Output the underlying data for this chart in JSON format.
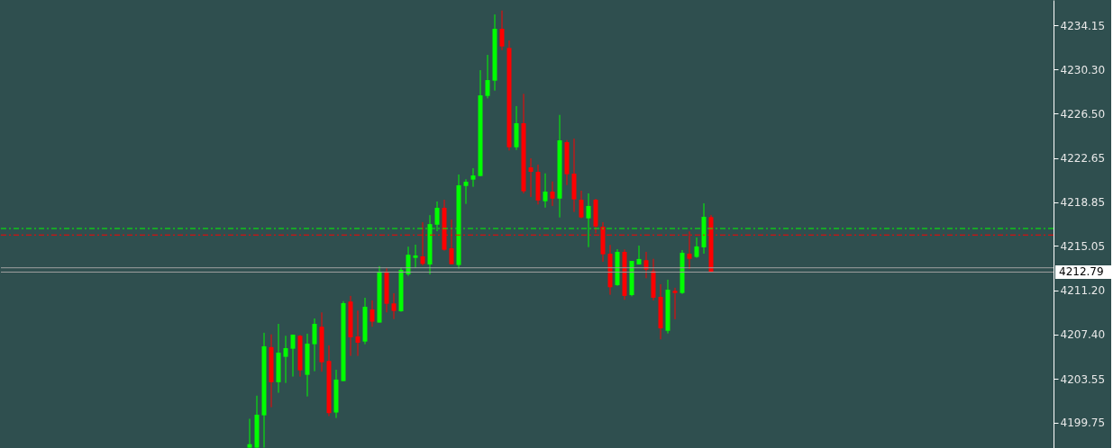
{
  "chart_data": {
    "type": "candlestick",
    "categories": [
      null,
      null,
      null,
      null,
      null,
      null,
      null,
      null,
      null,
      null,
      null,
      null,
      null,
      null,
      null,
      null,
      null,
      null,
      null,
      null,
      null,
      null,
      null,
      null,
      null,
      null,
      null,
      null,
      null,
      null,
      null,
      null,
      null,
      null,
      null,
      null,
      null,
      null,
      null,
      null,
      null,
      null,
      null,
      null,
      null,
      null,
      null,
      null,
      null,
      null,
      null,
      null,
      null,
      null,
      null,
      null,
      null,
      null,
      null,
      null,
      null,
      null,
      null,
      null,
      null,
      null,
      null,
      null,
      null,
      null,
      null,
      null,
      null,
      null,
      null,
      null,
      null,
      null,
      null,
      null,
      null,
      null,
      null,
      null,
      null,
      null,
      null,
      null,
      null,
      null,
      null,
      null,
      null,
      null,
      null,
      null,
      null,
      null,
      null,
      null,
      null,
      null,
      null,
      null,
      null,
      null,
      null,
      null,
      null,
      null,
      null,
      null,
      null,
      null,
      null,
      null,
      null,
      null,
      null,
      null,
      null,
      null,
      null,
      null,
      null,
      null,
      null,
      null,
      null,
      null,
      null,
      null,
      null,
      null,
      null,
      null,
      null,
      null,
      null,
      null,
      null,
      null,
      null,
      null,
      null,
      null
    ],
    "ohlc": [
      null,
      null,
      null,
      null,
      null,
      null,
      null,
      null,
      null,
      null,
      null,
      null,
      null,
      null,
      null,
      null,
      null,
      null,
      null,
      null,
      null,
      null,
      null,
      null,
      null,
      null,
      null,
      null,
      null,
      null,
      null,
      null,
      null,
      null,
      [
        4197.6,
        4200.1,
        4197.6,
        4197.9
      ],
      [
        4197.6,
        4202.1,
        4197.6,
        4200.45
      ],
      [
        4200.4,
        4207.54,
        4197.6,
        4206.37
      ],
      [
        4206.3,
        4207.4,
        4201.1,
        4203.26
      ],
      [
        4203.26,
        4208.31,
        4202.35,
        4205.82
      ],
      [
        4205.46,
        4207.28,
        4203.2,
        4206.21
      ],
      [
        4206.16,
        4207.38,
        4203.75,
        4207.38
      ],
      [
        4207.28,
        4207.35,
        4203.75,
        4204.29
      ],
      [
        4203.9,
        4207.46,
        4202.03,
        4206.6
      ],
      [
        4206.55,
        4208.78,
        4204.21,
        4208.31
      ],
      [
        4208.06,
        4209.3,
        4204.17,
        4204.99
      ],
      [
        4205.1,
        4206.45,
        4200.33,
        4200.59
      ],
      [
        4200.64,
        4204.34,
        4200.17,
        4203.49
      ],
      [
        4203.36,
        4210.27,
        4203.36,
        4210.1
      ],
      [
        4210.24,
        4210.73,
        4205.54,
        4207.15
      ],
      [
        4207.22,
        4209.46,
        4205.54,
        4206.68
      ],
      [
        4206.78,
        4210.57,
        4206.55,
        4209.79
      ],
      [
        4209.56,
        4210.34,
        4208.06,
        4208.5
      ],
      [
        4208.42,
        4213.3,
        4208.42,
        4212.83
      ],
      [
        4212.83,
        4213.12,
        4209.3,
        4210.05
      ],
      [
        4210.08,
        4210.96,
        4208.73,
        4209.43
      ],
      [
        4209.4,
        4213.19,
        4209.36,
        4212.98
      ],
      [
        4212.59,
        4214.99,
        4212.46,
        4214.29
      ],
      [
        4214.02,
        4215.16,
        4213.16,
        4214.23
      ],
      [
        4214.15,
        4217.1,
        4213.37,
        4213.5
      ],
      [
        4213.45,
        4217.72,
        4212.59,
        4216.94
      ],
      [
        4216.89,
        4218.9,
        4216.32,
        4218.35
      ],
      [
        4218.35,
        4219.05,
        4214.64,
        4214.72
      ],
      [
        4214.85,
        4217.34,
        4213.47,
        4213.47
      ],
      [
        4213.4,
        4221.23,
        4213.08,
        4220.3
      ],
      [
        4220.24,
        4220.82,
        4218.69,
        4220.61
      ],
      [
        4220.79,
        4221.78,
        4220.17,
        4221.15
      ],
      [
        4221.1,
        4230.26,
        4221.1,
        4228.08
      ],
      [
        4228.03,
        4231.58,
        4227.82,
        4229.4
      ],
      [
        4229.35,
        4235.08,
        4228.49,
        4233.84
      ],
      [
        4233.84,
        4235.42,
        4232.0,
        4232.31
      ],
      [
        4232.18,
        4232.83,
        4223.31,
        4223.59
      ],
      [
        4223.59,
        4227.15,
        4223.36,
        4225.67
      ],
      [
        4225.67,
        4228.21,
        4219.6,
        4219.78
      ],
      [
        4221.85,
        4222.63,
        4219.29,
        4221.46
      ],
      [
        4221.46,
        4222.09,
        4218.64,
        4218.98
      ],
      [
        4218.92,
        4221.33,
        4218.37,
        4219.75
      ],
      [
        4219.75,
        4220.63,
        4218.51,
        4219.15
      ],
      [
        4219.15,
        4226.39,
        4217.52,
        4224.19
      ],
      [
        4224.03,
        4224.21,
        4220.32,
        4221.26
      ],
      [
        4221.31,
        4224.34,
        4217.99,
        4219.08
      ],
      [
        4219.05,
        4219.83,
        4217.44,
        4217.52
      ],
      [
        4217.44,
        4219.6,
        4214.95,
        4218.51
      ],
      [
        4219.05,
        4219.13,
        4216.15,
        4216.74
      ],
      [
        4216.72,
        4217.11,
        4213.68,
        4214.33
      ],
      [
        4214.38,
        4215.14,
        4210.83,
        4211.48
      ],
      [
        4211.66,
        4214.77,
        4211.6,
        4214.54
      ],
      [
        4214.54,
        4214.75,
        4210.39,
        4210.73
      ],
      [
        4210.8,
        4213.76,
        4210.7,
        4213.76
      ],
      [
        4213.45,
        4215.08,
        4213.45,
        4213.92
      ],
      [
        4213.82,
        4214.54,
        4212.26,
        4213.01
      ],
      [
        4212.88,
        4213.94,
        4210.34,
        4210.57
      ],
      [
        4210.65,
        4211.74,
        4206.97,
        4207.92
      ],
      [
        4207.71,
        4212.13,
        4207.48,
        4211.27
      ],
      [
        4211.17,
        4211.43,
        4208.71,
        4210.98
      ],
      [
        4210.98,
        4214.69,
        4210.9,
        4214.46
      ],
      [
        4214.38,
        4216.31,
        4213.06,
        4213.94
      ],
      [
        4214.1,
        4215.79,
        4214.02,
        4215.01
      ],
      [
        4214.93,
        4218.74,
        4214.38,
        4217.57
      ],
      [
        4217.55,
        4217.73,
        4212.75,
        4212.79
      ],
      null,
      null,
      null,
      null,
      null,
      null,
      null,
      null,
      null,
      null,
      null,
      null,
      null,
      null,
      null,
      null,
      null,
      null,
      null,
      null,
      null,
      null,
      null,
      null,
      null,
      null,
      null,
      null,
      null,
      null,
      null,
      null,
      null,
      null,
      null,
      null,
      null,
      null,
      null,
      null,
      null,
      null,
      null,
      null,
      null,
      null,
      null
    ],
    "colors": [
      null,
      null,
      null,
      null,
      null,
      null,
      null,
      null,
      null,
      null,
      null,
      null,
      null,
      null,
      null,
      null,
      null,
      null,
      null,
      null,
      null,
      null,
      null,
      null,
      null,
      null,
      null,
      null,
      null,
      null,
      null,
      null,
      null,
      null,
      "#00ff00",
      "#00ff00",
      "#00ff00",
      "#ff0000",
      "#00ff00",
      "#00ff00",
      "#00ff00",
      "#ff0000",
      "#00ff00",
      "#00ff00",
      "#ff0000",
      "#ff0000",
      "#00ff00",
      "#00ff00",
      "#ff0000",
      "#ff0000",
      "#00ff00",
      "#ff0000",
      "#00ff00",
      "#ff0000",
      "#ff0000",
      "#00ff00",
      "#00ff00",
      "#00ff00",
      "#ff0000",
      "#00ff00",
      "#00ff00",
      "#ff0000",
      "#ff0000",
      "#00ff00",
      "#00ff00",
      "#00ff00",
      "#00ff00",
      "#00ff00",
      "#00ff00",
      "#ff0000",
      "#ff0000",
      "#00ff00",
      "#ff0000",
      "#ff0000",
      "#ff0000",
      "#00ff00",
      "#ff0000",
      "#00ff00",
      "#ff0000",
      "#ff0000",
      "#ff0000",
      "#00ff00",
      "#ff0000",
      "#ff0000",
      "#ff0000",
      "#00ff00",
      "#ff0000",
      "#00ff00",
      "#00ff00",
      "#ff0000",
      "#ff0000",
      "#ff0000",
      "#00ff00",
      "#ff0000",
      "#00ff00",
      "#ff0000",
      "#00ff00",
      "#00ff00",
      "#ff0000",
      null,
      null,
      null,
      null,
      null,
      null,
      null,
      null,
      null,
      null,
      null,
      null,
      null,
      null,
      null,
      null,
      null,
      null,
      null,
      null,
      null,
      null,
      null,
      null,
      null,
      null,
      null,
      null,
      null,
      null,
      null,
      null,
      null,
      null,
      null,
      null,
      null,
      null,
      null,
      null,
      null,
      null,
      null,
      null,
      null,
      null,
      null
    ],
    "ylim": [
      4197.57,
      4236.33
    ],
    "yticks": [
      4199.75,
      4203.55,
      {
        "value": 4207.4,
        "label": "4207.40"
      },
      {
        "value": 4211.2,
        "label": "4211.20"
      },
      4215.05,
      4218.85,
      4222.65,
      {
        "value": 4226.5,
        "label": "4226.50"
      },
      {
        "value": 4230.3,
        "label": "4230.30"
      },
      4234.15
    ],
    "tick_labels": "y",
    "grid": false,
    "ref_lines": [
      {
        "axis": "y",
        "value": 4216.56,
        "color": "#00ff00",
        "line_style": "dashed"
      },
      {
        "axis": "y",
        "value": 4216.0,
        "color": "#ff0000",
        "line_style": "dashed"
      },
      {
        "axis": "y",
        "value": 4213.16,
        "color": "#a0a0a0",
        "line_style": "solid"
      },
      {
        "axis": "y",
        "value": 4212.79,
        "color": "#a0a0a0",
        "line_style": "solid",
        "label": "4212.79"
      }
    ]
  }
}
